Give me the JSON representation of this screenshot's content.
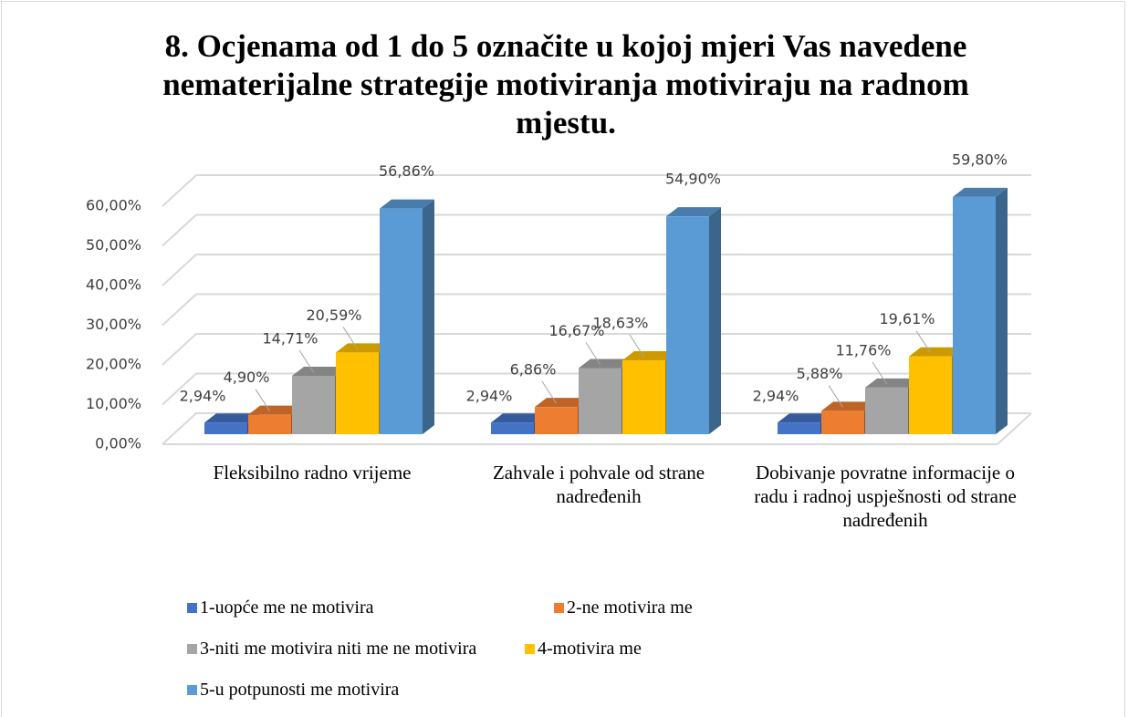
{
  "chart_data": {
    "type": "bar3d",
    "title": "8. Ocjenama od 1 do 5 označite u kojoj mjeri Vas navedene nematerijalne strategije motiviranja motiviraju na radnom mjestu.",
    "categories": [
      "Fleksibilno radno vrijeme",
      "Zahvale i pohvale od strane nadređenih",
      "Dobivanje povratne informacije o radu i radnoj uspješnosti od strane nadređenih"
    ],
    "series": [
      {
        "name": "1-uopće me ne motivira",
        "color": "#4472c4",
        "values": [
          2.94,
          2.94,
          2.94
        ],
        "value_labels": [
          "2,94%",
          "2,94%",
          "2,94%"
        ]
      },
      {
        "name": "2-ne motivira me",
        "color": "#ed7d31",
        "values": [
          4.9,
          6.86,
          5.88
        ],
        "value_labels": [
          "4,90%",
          "6,86%",
          "5,88%"
        ]
      },
      {
        "name": "3-niti me motivira niti me ne motivira",
        "color": "#a5a5a5",
        "values": [
          14.71,
          16.67,
          11.76
        ],
        "value_labels": [
          "14,71%",
          "16,67%",
          "11,76%"
        ]
      },
      {
        "name": "4-motivira me",
        "color": "#ffc000",
        "values": [
          20.59,
          18.63,
          19.61
        ],
        "value_labels": [
          "20,59%",
          "18,63%",
          "19,61%"
        ]
      },
      {
        "name": "5-u potpunosti me motivira",
        "color": "#5b9bd5",
        "values": [
          56.86,
          54.9,
          59.8
        ],
        "value_labels": [
          "56,86%",
          "54,90%",
          "59,80%"
        ]
      }
    ],
    "ylim": [
      0,
      60
    ],
    "yticks": [
      {
        "value": 0,
        "label": "0,00%"
      },
      {
        "value": 10,
        "label": "10,00%"
      },
      {
        "value": 20,
        "label": "20,00%"
      },
      {
        "value": 30,
        "label": "30,00%"
      },
      {
        "value": 40,
        "label": "40,00%"
      },
      {
        "value": 50,
        "label": "50,00%"
      },
      {
        "value": 60,
        "label": "60,00%"
      }
    ],
    "grid": true,
    "legend": "bottom"
  }
}
